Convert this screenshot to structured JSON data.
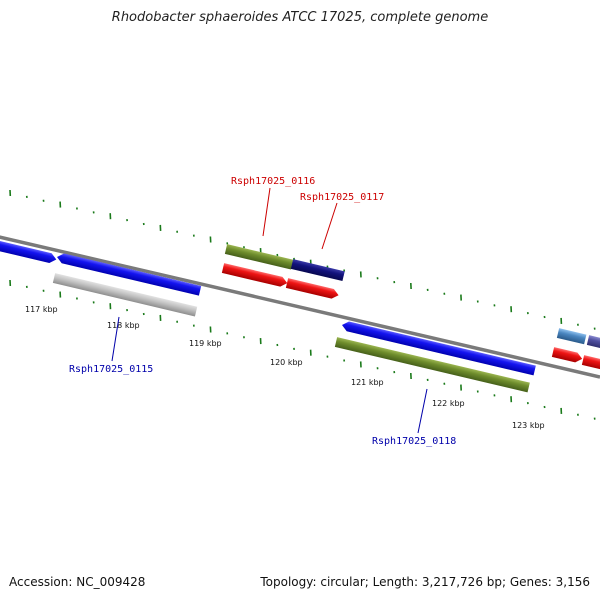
{
  "title": "Rhodobacter sphaeroides ATCC 17025, complete genome",
  "accession_text": "Accession: NC_009428",
  "summary_text": "Topology: circular; Length: 3,217,726 bp; Genes: 3,156",
  "colors": {
    "backbone": "#7a7a7a",
    "tick": "#1a7a1a",
    "label_red": "#cc0000",
    "label_blue": "#0000aa",
    "gene_blue": "#1010e0",
    "gene_gray": "#b8b8b8",
    "gene_green": "#6b8a2a",
    "gene_navy": "#101078",
    "gene_red": "#e81010",
    "gene_steel": "#4a86c0",
    "gene_purple": "#5050a0"
  },
  "ticks": {
    "labels": [
      "117 kbp",
      "118 kbp",
      "119 kbp",
      "120 kbp",
      "121 kbp",
      "122 kbp",
      "123 kbp"
    ]
  },
  "gene_labels": [
    {
      "name": "Rsph17025_0116",
      "color": "red"
    },
    {
      "name": "Rsph17025_0117",
      "color": "red"
    },
    {
      "name": "Rsph17025_0115",
      "color": "blue"
    },
    {
      "name": "Rsph17025_0118",
      "color": "blue"
    }
  ]
}
